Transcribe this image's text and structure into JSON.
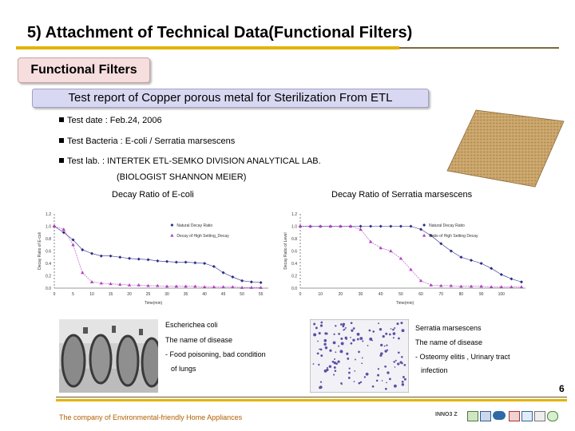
{
  "title": "5) Attachment of Technical Data(Functional Filters)",
  "section_label": "Functional Filters",
  "report_title": "Test report of Copper porous metal for Sterilization From ETL",
  "info": {
    "date": "Test date : Feb.24, 2006",
    "bacteria": "Test Bacteria  : E-coli / Serratia marsescens",
    "lab": "Test lab. : INTERTEK ETL-SEMKO DIVISION ANALYTICAL LAB.",
    "biologist": "(BIOLOGIST SHANNON MEIER)"
  },
  "colors": {
    "accent_gold": "#e2b400",
    "series_natural": "#2a2a8a",
    "series_filter": "#b040c0"
  },
  "chart_data": [
    {
      "type": "line",
      "title": "Decay Ratio of E-coli",
      "xlabel": "Time(min)",
      "ylabel": "Decay Ratio of E-coli",
      "x": [
        0,
        2.5,
        5,
        7.5,
        10,
        12.5,
        15,
        17.5,
        20,
        22.5,
        25,
        27.5,
        30,
        32.5,
        35,
        37.5,
        40,
        42.5,
        45,
        47.5,
        50,
        52.5,
        55
      ],
      "xticks": [
        "0",
        "5",
        "10",
        "15",
        "20",
        "25",
        "30",
        "35",
        "40",
        "45",
        "50",
        "55"
      ],
      "yticks": [
        "0.0",
        "0.2",
        "0.4",
        "0.6",
        "0.8",
        "1.0",
        "1.2"
      ],
      "ylim": [
        0,
        1.2
      ],
      "xlim": [
        0,
        57
      ],
      "legend_position": "right",
      "series": [
        {
          "name": "Natural Decay Ratio",
          "marker": "diamond",
          "values": [
            1.0,
            0.9,
            0.78,
            0.62,
            0.56,
            0.52,
            0.52,
            0.5,
            0.48,
            0.47,
            0.46,
            0.44,
            0.43,
            0.42,
            0.42,
            0.41,
            0.4,
            0.35,
            0.25,
            0.18,
            0.12,
            0.1,
            0.09
          ]
        },
        {
          "name": "Decay of High Setting_Decay",
          "marker": "triangle",
          "values": [
            1.0,
            0.95,
            0.7,
            0.25,
            0.1,
            0.08,
            0.07,
            0.06,
            0.05,
            0.05,
            0.04,
            0.04,
            0.03,
            0.03,
            0.03,
            0.03,
            0.02,
            0.02,
            0.02,
            0.02,
            0.01,
            0.01,
            0.01
          ]
        }
      ]
    },
    {
      "type": "line",
      "title": "Decay Ratio of Serratia marsescens",
      "xlabel": "Time(min)",
      "ylabel": "Decay Ratio of Level",
      "x": [
        0,
        5,
        10,
        15,
        20,
        25,
        30,
        35,
        40,
        45,
        50,
        55,
        60,
        65,
        70,
        75,
        80,
        85,
        90,
        95,
        100,
        105,
        110
      ],
      "xticks": [
        "0",
        "10",
        "20",
        "30",
        "40",
        "50",
        "60",
        "70",
        "80",
        "90",
        "100"
      ],
      "yticks": [
        "0.0",
        "0.2",
        "0.4",
        "0.6",
        "0.8",
        "1.0",
        "1.2"
      ],
      "ylim": [
        0,
        1.2
      ],
      "xlim": [
        0,
        112
      ],
      "legend_position": "right",
      "series": [
        {
          "name": "Natural Decay Ratio",
          "marker": "diamond",
          "values": [
            1.0,
            1.0,
            1.0,
            1.0,
            1.0,
            1.0,
            1.0,
            1.0,
            1.0,
            1.0,
            1.0,
            1.0,
            0.95,
            0.85,
            0.72,
            0.6,
            0.5,
            0.45,
            0.4,
            0.32,
            0.22,
            0.15,
            0.1
          ]
        },
        {
          "name": "Ratio of High Setting Decay",
          "marker": "triangle",
          "values": [
            1.0,
            1.0,
            1.0,
            1.0,
            1.0,
            1.0,
            0.95,
            0.75,
            0.65,
            0.6,
            0.48,
            0.3,
            0.12,
            0.05,
            0.04,
            0.04,
            0.03,
            0.03,
            0.03,
            0.02,
            0.02,
            0.02,
            0.02
          ]
        }
      ]
    }
  ],
  "captions": {
    "ecoli": {
      "name": "Escherichea coli",
      "disease_label": "The name of disease",
      "disease_1": "- Food poisoning, bad condition",
      "disease_2": "of lungs"
    },
    "serratia": {
      "name": "Serratia marsescens",
      "disease_label": "The name of disease",
      "disease_1": "- Osteomy elitis , Urinary tract",
      "disease_2": "infection"
    }
  },
  "page_number": "6",
  "footer": "The company of Environmental-friendly Home Appliances",
  "logo_text": "INNO3 Z"
}
